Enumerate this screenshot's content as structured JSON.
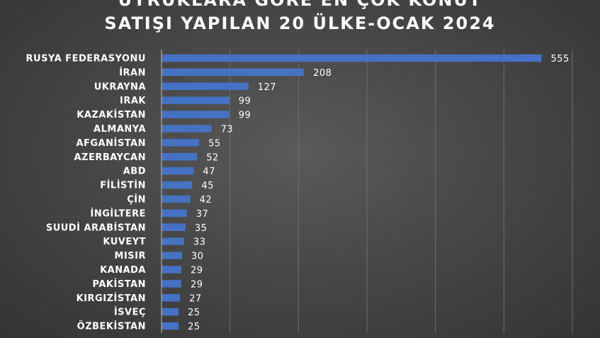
{
  "chart_data": {
    "type": "bar",
    "orientation": "horizontal",
    "title_lines": [
      "UYRUKLARA GÖRE EN ÇOK KONUT",
      "SATIŞI YAPILAN 20 ÜLKE-OCAK 2024"
    ],
    "categories": [
      "RUSYA FEDERASYONU",
      "İRAN",
      "UKRAYNA",
      "IRAK",
      "KAZAKİSTAN",
      "ALMANYA",
      "AFGANİSTAN",
      "AZERBAYCAN",
      "ABD",
      "FİLİSTİN",
      "ÇİN",
      "İNGİLTERE",
      "SUUDİ ARABİSTAN",
      "KUVEYT",
      "MISIR",
      "KANADA",
      "PAKİSTAN",
      "KIRGIZİSTAN",
      "İSVEÇ",
      "ÖZBEKİSTAN"
    ],
    "values": [
      555,
      208,
      127,
      99,
      99,
      73,
      55,
      52,
      47,
      45,
      42,
      37,
      35,
      33,
      30,
      29,
      29,
      27,
      25,
      25
    ],
    "xlim": [
      0,
      600
    ],
    "grid": true,
    "bar_color": "#4472c4",
    "data_labels": true
  }
}
